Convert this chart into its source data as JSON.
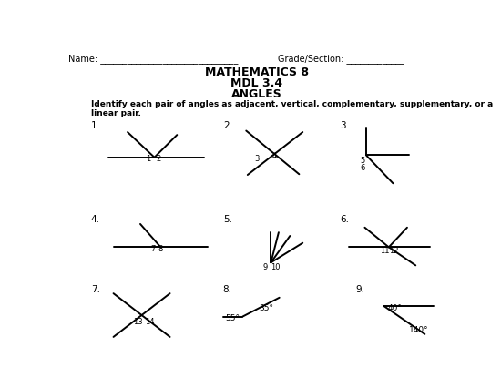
{
  "title1": "MATHEMATICS 8",
  "title2": "MDL 3.4",
  "title3": "ANGLES",
  "name_label": "Name: _______________________________",
  "grade_label": "Grade/Section: _____________",
  "instruction": "Identify each pair of angles as adjacent, vertical, complementary, supplementary, or a\nlinear pair.",
  "bg_color": "#ffffff",
  "line_color": "#000000",
  "fig_w": 5.5,
  "fig_h": 4.26,
  "dpi": 100
}
